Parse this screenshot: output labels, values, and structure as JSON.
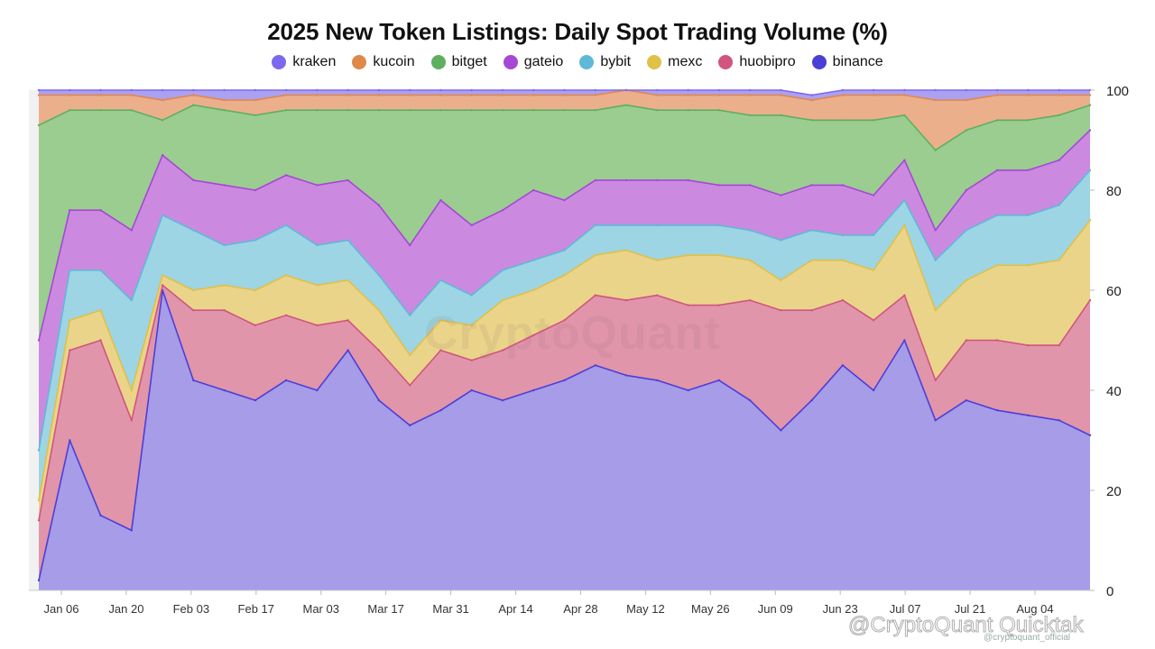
{
  "title": "2025 New Token Listings: Daily Spot Trading Volume (%)",
  "watermark": "CryptoQuant",
  "credit": "@CryptoQuant Quicktak",
  "credit_sub": "@cryptoquant_official",
  "chart_data": {
    "type": "area",
    "stacked": true,
    "ylim": [
      0,
      100
    ],
    "yticks": [
      0,
      20,
      40,
      60,
      80,
      100
    ],
    "y_axis_position": "right",
    "legend_position": "top",
    "grid": false,
    "x_tick_labels": [
      "Jan 06",
      "Jan 20",
      "Feb 03",
      "Feb 17",
      "Mar 03",
      "Mar 17",
      "Mar 31",
      "Apr 14",
      "Apr 28",
      "May 12",
      "May 26",
      "Jun 09",
      "Jun 23",
      "Jul 07",
      "Jul 21",
      "Aug 04"
    ],
    "x": [
      "Jan 02",
      "Jan 06",
      "Jan 13",
      "Jan 17",
      "Jan 20",
      "Jan 27",
      "Feb 03",
      "Feb 10",
      "Feb 17",
      "Feb 24",
      "Mar 03",
      "Mar 10",
      "Mar 17",
      "Mar 24",
      "Mar 31",
      "Apr 07",
      "Apr 14",
      "Apr 21",
      "Apr 28",
      "May 05",
      "May 12",
      "May 19",
      "May 26",
      "Jun 02",
      "Jun 09",
      "Jun 16",
      "Jun 23",
      "Jun 30",
      "Jul 07",
      "Jul 14",
      "Jul 21",
      "Jul 28",
      "Aug 04",
      "Aug 11",
      "Aug 15"
    ],
    "series": [
      {
        "name": "binance",
        "color": "#4b3fd8",
        "fill": "#a197e6",
        "values": [
          2,
          30,
          15,
          12,
          60,
          42,
          40,
          38,
          42,
          40,
          48,
          38,
          33,
          36,
          40,
          38,
          40,
          42,
          45,
          43,
          42,
          40,
          42,
          38,
          32,
          38,
          45,
          40,
          50,
          34,
          38,
          36,
          35,
          34,
          31
        ]
      },
      {
        "name": "huobipro",
        "color": "#d1557f",
        "fill": "#de8fa6",
        "values": [
          12,
          18,
          35,
          22,
          1,
          14,
          16,
          15,
          13,
          13,
          6,
          10,
          8,
          12,
          6,
          10,
          11,
          12,
          14,
          15,
          17,
          17,
          15,
          20,
          24,
          18,
          13,
          14,
          9,
          8,
          12,
          14,
          14,
          15,
          27
        ]
      },
      {
        "name": "mexc",
        "color": "#e0c046",
        "fill": "#e9d284",
        "values": [
          4,
          6,
          6,
          6,
          2,
          4,
          5,
          7,
          8,
          8,
          8,
          8,
          6,
          6,
          7,
          10,
          9,
          9,
          8,
          10,
          7,
          10,
          10,
          8,
          6,
          10,
          8,
          10,
          14,
          14,
          12,
          15,
          16,
          17,
          16
        ]
      },
      {
        "name": "bybit",
        "color": "#5fb9d6",
        "fill": "#98d3e3",
        "values": [
          10,
          10,
          8,
          18,
          12,
          12,
          8,
          10,
          10,
          8,
          8,
          7,
          8,
          8,
          6,
          6,
          6,
          5,
          6,
          5,
          7,
          6,
          6,
          6,
          8,
          6,
          5,
          7,
          5,
          10,
          10,
          10,
          10,
          11,
          10
        ]
      },
      {
        "name": "gateio",
        "color": "#a647d6",
        "fill": "#c884de",
        "values": [
          22,
          12,
          12,
          14,
          12,
          10,
          12,
          10,
          10,
          12,
          12,
          14,
          14,
          16,
          14,
          12,
          14,
          10,
          9,
          9,
          9,
          9,
          8,
          9,
          9,
          9,
          10,
          8,
          8,
          6,
          8,
          9,
          9,
          9,
          8
        ]
      },
      {
        "name": "bitget",
        "color": "#5eb05f",
        "fill": "#96c98a",
        "values": [
          43,
          20,
          20,
          24,
          7,
          15,
          15,
          15,
          13,
          15,
          14,
          19,
          27,
          18,
          23,
          20,
          16,
          18,
          14,
          15,
          14,
          14,
          15,
          14,
          16,
          13,
          13,
          15,
          9,
          16,
          12,
          10,
          10,
          9,
          5
        ]
      },
      {
        "name": "kucoin",
        "color": "#e08849",
        "fill": "#ebab86",
        "values": [
          6,
          3,
          3,
          3,
          4,
          2,
          2,
          3,
          3,
          3,
          3,
          3,
          3,
          3,
          3,
          3,
          3,
          3,
          3,
          3,
          3,
          3,
          3,
          4,
          4,
          4,
          5,
          5,
          4,
          10,
          6,
          5,
          5,
          4,
          2
        ]
      },
      {
        "name": "kraken",
        "color": "#7b68ee",
        "fill": "#a89bf0",
        "values": [
          1,
          1,
          1,
          1,
          2,
          1,
          2,
          2,
          1,
          1,
          1,
          1,
          1,
          1,
          1,
          1,
          1,
          1,
          1,
          0,
          1,
          1,
          1,
          1,
          1,
          1,
          1,
          1,
          1,
          2,
          2,
          1,
          1,
          1,
          1
        ]
      }
    ],
    "legend_order": [
      "kraken",
      "kucoin",
      "bitget",
      "gateio",
      "bybit",
      "mexc",
      "huobipro",
      "binance"
    ]
  }
}
